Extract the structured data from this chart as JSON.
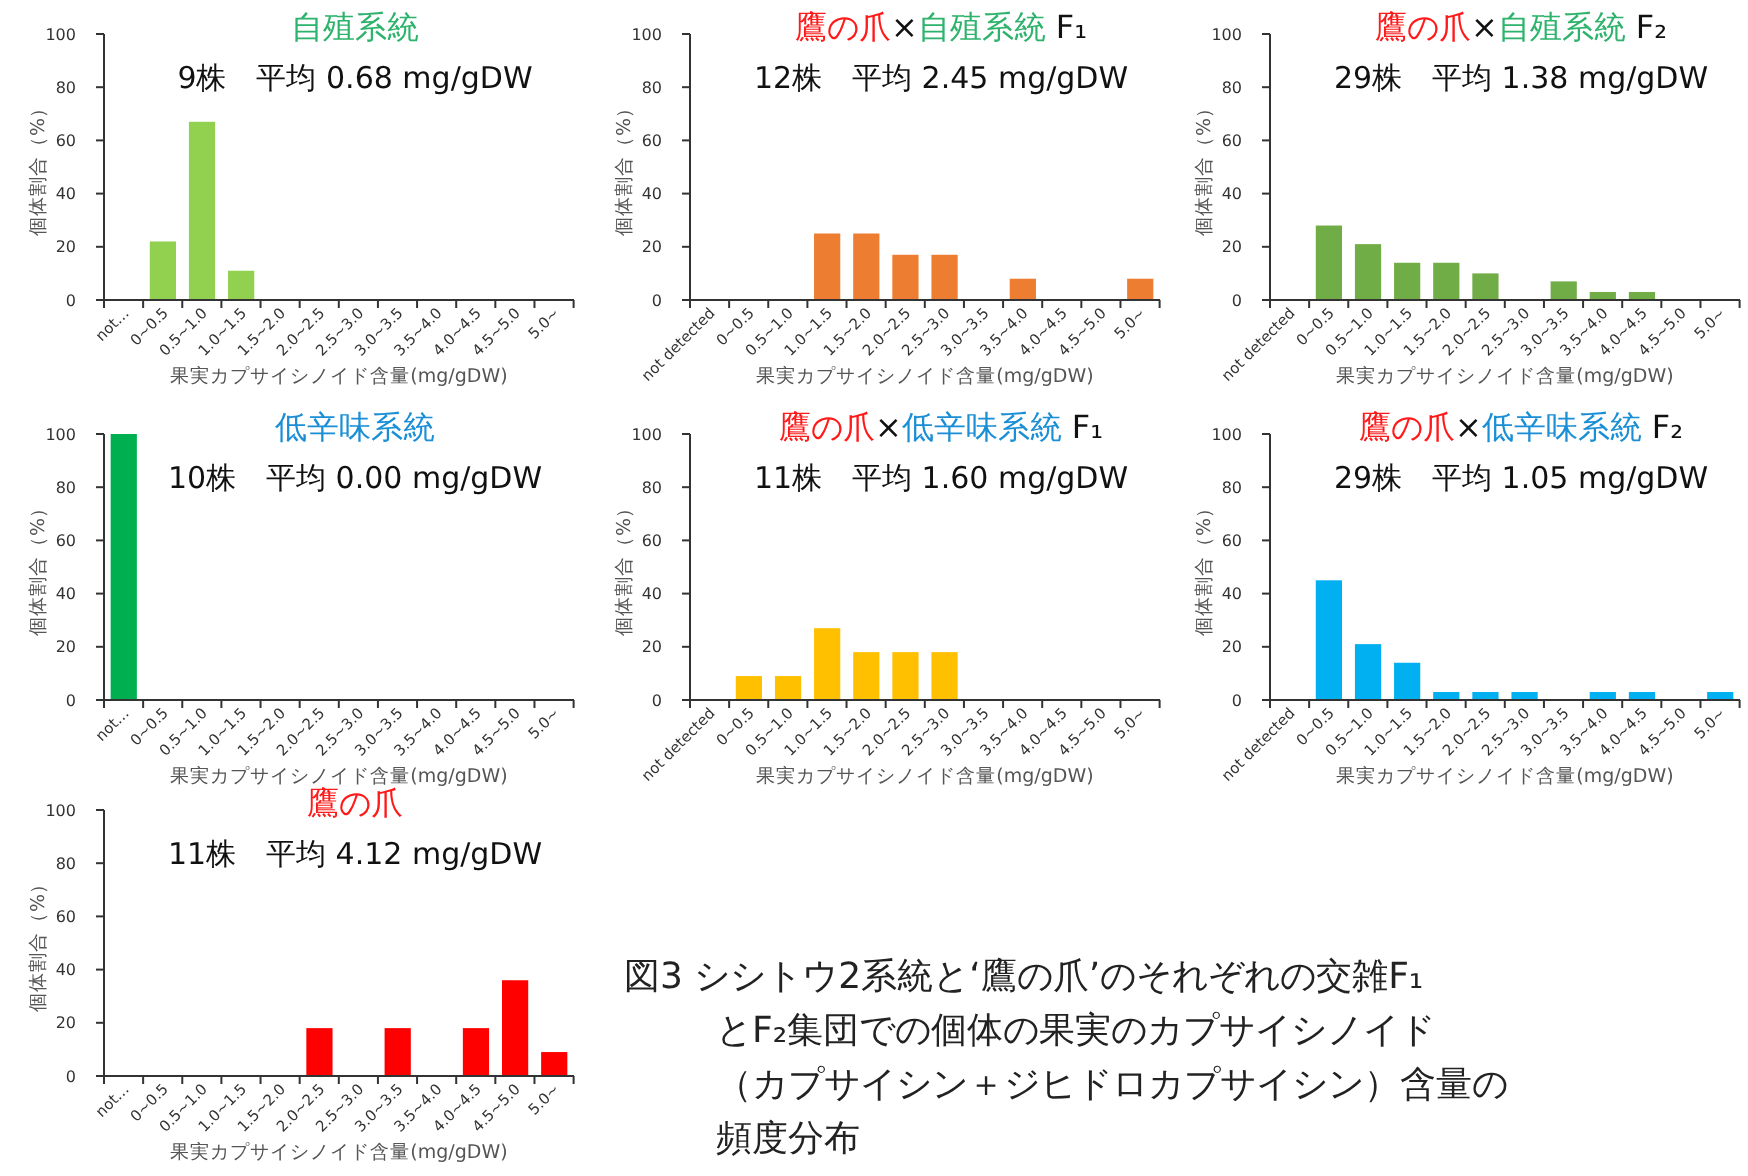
{
  "chart_data": [
    {
      "type": "bar",
      "title": "自殖系統",
      "subtitle": "9株　平均 0.68 mg/gDW",
      "xlabel": "果実カプサイシノイド含量(mg/gDW)",
      "ylabel": "個体割合（%）",
      "categories": [
        "not…",
        "0~0.5",
        "0.5~1.0",
        "1.0~1.5",
        "1.5~2.0",
        "2.0~2.5",
        "2.5~3.0",
        "3.0~3.5",
        "3.5~4.0",
        "4.0~4.5",
        "4.5~5.0",
        "5.0~"
      ],
      "values": [
        0,
        22,
        67,
        11,
        0,
        0,
        0,
        0,
        0,
        0,
        0,
        0
      ],
      "color": "#92d050",
      "ylim": [
        0,
        100
      ],
      "yticks": [
        0,
        20,
        40,
        60,
        80,
        100
      ]
    },
    {
      "type": "bar",
      "title": "鷹の爪×自殖系統 F₁",
      "subtitle": "12株　平均 2.45 mg/gDW",
      "xlabel": "果実カプサイシノイド含量(mg/gDW)",
      "ylabel": "個体割合（%）",
      "categories": [
        "not detected",
        "0~0.5",
        "0.5~1.0",
        "1.0~1.5",
        "1.5~2.0",
        "2.0~2.5",
        "2.5~3.0",
        "3.0~3.5",
        "3.5~4.0",
        "4.0~4.5",
        "4.5~5.0",
        "5.0~"
      ],
      "values": [
        0,
        0,
        0,
        25,
        25,
        17,
        17,
        0,
        8,
        0,
        0,
        8
      ],
      "color": "#ed7d31",
      "ylim": [
        0,
        100
      ],
      "yticks": [
        0,
        20,
        40,
        60,
        80,
        100
      ]
    },
    {
      "type": "bar",
      "title": "鷹の爪×自殖系統 F₂",
      "subtitle": "29株　平均 1.38 mg/gDW",
      "xlabel": "果実カプサイシノイド含量(mg/gDW)",
      "ylabel": "個体割合（%）",
      "categories": [
        "not detected",
        "0~0.5",
        "0.5~1.0",
        "1.0~1.5",
        "1.5~2.0",
        "2.0~2.5",
        "2.5~3.0",
        "3.0~3.5",
        "3.5~4.0",
        "4.0~4.5",
        "4.5~5.0",
        "5.0~"
      ],
      "values": [
        0,
        28,
        21,
        14,
        14,
        10,
        0,
        7,
        3,
        3,
        0,
        0
      ],
      "color": "#70ad47",
      "ylim": [
        0,
        100
      ],
      "yticks": [
        0,
        20,
        40,
        60,
        80,
        100
      ]
    },
    {
      "type": "bar",
      "title": "低辛味系統",
      "subtitle": "10株　平均 0.00 mg/gDW",
      "xlabel": "果実カプサイシノイド含量(mg/gDW)",
      "ylabel": "個体割合（%）",
      "categories": [
        "not…",
        "0~0.5",
        "0.5~1.0",
        "1.0~1.5",
        "1.5~2.0",
        "2.0~2.5",
        "2.5~3.0",
        "3.0~3.5",
        "3.5~4.0",
        "4.0~4.5",
        "4.5~5.0",
        "5.0~"
      ],
      "values": [
        100,
        0,
        0,
        0,
        0,
        0,
        0,
        0,
        0,
        0,
        0,
        0
      ],
      "color": "#00b050",
      "ylim": [
        0,
        100
      ],
      "yticks": [
        0,
        20,
        40,
        60,
        80,
        100
      ]
    },
    {
      "type": "bar",
      "title": "鷹の爪×低辛味系統 F₁",
      "subtitle": "11株　平均 1.60 mg/gDW",
      "xlabel": "果実カプサイシノイド含量(mg/gDW)",
      "ylabel": "個体割合（%）",
      "categories": [
        "not detected",
        "0~0.5",
        "0.5~1.0",
        "1.0~1.5",
        "1.5~2.0",
        "2.0~2.5",
        "2.5~3.0",
        "3.0~3.5",
        "3.5~4.0",
        "4.0~4.5",
        "4.5~5.0",
        "5.0~"
      ],
      "values": [
        0,
        9,
        9,
        27,
        18,
        18,
        18,
        0,
        0,
        0,
        0,
        0
      ],
      "color": "#ffc000",
      "ylim": [
        0,
        100
      ],
      "yticks": [
        0,
        20,
        40,
        60,
        80,
        100
      ]
    },
    {
      "type": "bar",
      "title": "鷹の爪×低辛味系統 F₂",
      "subtitle": "29株　平均 1.05 mg/gDW",
      "xlabel": "果実カプサイシノイド含量(mg/gDW)",
      "ylabel": "個体割合（%）",
      "categories": [
        "not detected",
        "0~0.5",
        "0.5~1.0",
        "1.0~1.5",
        "1.5~2.0",
        "2.0~2.5",
        "2.5~3.0",
        "3.0~3.5",
        "3.5~4.0",
        "4.0~4.5",
        "4.5~5.0",
        "5.0~"
      ],
      "values": [
        0,
        45,
        21,
        14,
        3,
        3,
        3,
        0,
        3,
        3,
        0,
        3
      ],
      "color": "#00b0f0",
      "ylim": [
        0,
        100
      ],
      "yticks": [
        0,
        20,
        40,
        60,
        80,
        100
      ]
    },
    {
      "type": "bar",
      "title": "鷹の爪",
      "subtitle": "11株　平均 4.12 mg/gDW",
      "xlabel": "果実カプサイシノイド含量(mg/gDW)",
      "ylabel": "個体割合（%）",
      "categories": [
        "not…",
        "0~0.5",
        "0.5~1.0",
        "1.0~1.5",
        "1.5~2.0",
        "2.0~2.5",
        "2.5~3.0",
        "3.0~3.5",
        "3.5~4.0",
        "4.0~4.5",
        "4.5~5.0",
        "5.0~"
      ],
      "values": [
        0,
        0,
        0,
        0,
        0,
        18,
        0,
        18,
        0,
        18,
        36,
        9
      ],
      "color": "#ff0000",
      "ylim": [
        0,
        100
      ],
      "yticks": [
        0,
        20,
        40,
        60,
        80,
        100
      ]
    },
    {
      "type": "other",
      "annotations": [
        "図3 シシトウ2系統と‘鷹の爪’のそれぞれの交雑F₁とF₂集団での個体の果実のカプサイシノイド（カプサイシン＋ジヒドロカプサイシン）含量の頻度分布"
      ]
    }
  ]
}
